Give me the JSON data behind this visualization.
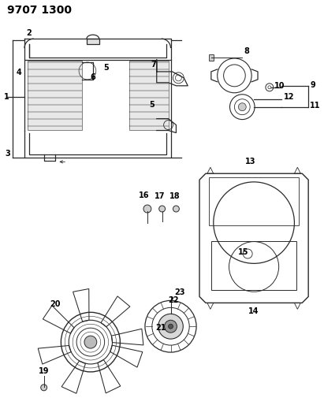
{
  "title": "9707 1300",
  "background_color": "#ffffff",
  "line_color": "#2a2a2a",
  "text_color": "#000000",
  "title_fontsize": 10,
  "label_fontsize": 7,
  "figsize": [
    4.11,
    5.33
  ],
  "dpi": 100,
  "fan_blade_angles": [
    15,
    60,
    110,
    160,
    210,
    255,
    305,
    350
  ]
}
